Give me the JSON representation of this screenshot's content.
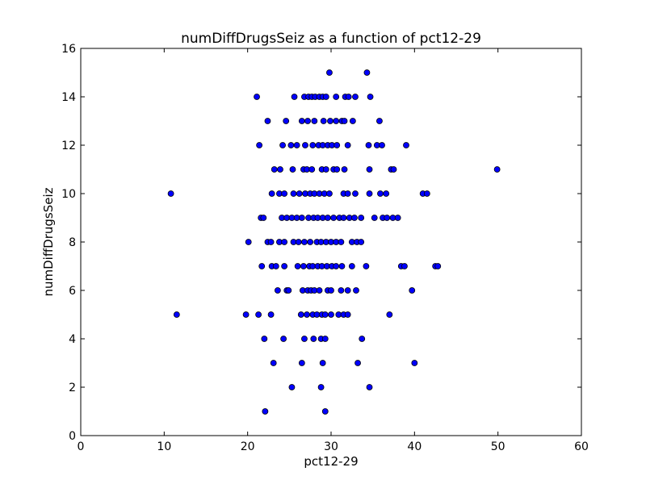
{
  "chart_data": {
    "type": "scatter",
    "title": "numDiffDrugsSeiz as a function of pct12-29",
    "xlabel": "pct12-29",
    "ylabel": "numDiffDrugsSeiz",
    "xlim": [
      0,
      60
    ],
    "ylim": [
      0,
      16
    ],
    "xticks": [
      "0",
      "10",
      "20",
      "30",
      "40",
      "50",
      "60"
    ],
    "yticks": [
      "0",
      "2",
      "4",
      "6",
      "8",
      "10",
      "12",
      "14",
      "16"
    ],
    "grid": false,
    "legend": "none",
    "marker_color": "#0000ff",
    "marker_edge_color": "#000000",
    "points": [
      {
        "x": 22.1,
        "y": 1
      },
      {
        "x": 29.3,
        "y": 1
      },
      {
        "x": 25.3,
        "y": 2
      },
      {
        "x": 28.8,
        "y": 2
      },
      {
        "x": 34.6,
        "y": 2
      },
      {
        "x": 23.1,
        "y": 3
      },
      {
        "x": 26.5,
        "y": 3
      },
      {
        "x": 29.0,
        "y": 3
      },
      {
        "x": 33.2,
        "y": 3
      },
      {
        "x": 40.0,
        "y": 3
      },
      {
        "x": 22.0,
        "y": 4
      },
      {
        "x": 24.3,
        "y": 4
      },
      {
        "x": 26.8,
        "y": 4
      },
      {
        "x": 27.9,
        "y": 4
      },
      {
        "x": 28.8,
        "y": 4
      },
      {
        "x": 29.3,
        "y": 4
      },
      {
        "x": 33.7,
        "y": 4
      },
      {
        "x": 11.5,
        "y": 5
      },
      {
        "x": 19.8,
        "y": 5
      },
      {
        "x": 21.3,
        "y": 5
      },
      {
        "x": 22.8,
        "y": 5
      },
      {
        "x": 26.4,
        "y": 5
      },
      {
        "x": 27.1,
        "y": 5
      },
      {
        "x": 27.8,
        "y": 5
      },
      {
        "x": 28.3,
        "y": 5
      },
      {
        "x": 28.9,
        "y": 5
      },
      {
        "x": 29.3,
        "y": 5
      },
      {
        "x": 30.0,
        "y": 5
      },
      {
        "x": 30.9,
        "y": 5
      },
      {
        "x": 31.5,
        "y": 5
      },
      {
        "x": 32.0,
        "y": 5
      },
      {
        "x": 37.0,
        "y": 5
      },
      {
        "x": 23.6,
        "y": 6
      },
      {
        "x": 24.7,
        "y": 6
      },
      {
        "x": 24.9,
        "y": 6
      },
      {
        "x": 26.6,
        "y": 6
      },
      {
        "x": 27.2,
        "y": 6
      },
      {
        "x": 27.6,
        "y": 6
      },
      {
        "x": 28.0,
        "y": 6
      },
      {
        "x": 28.6,
        "y": 6
      },
      {
        "x": 29.6,
        "y": 6
      },
      {
        "x": 30.0,
        "y": 6
      },
      {
        "x": 31.2,
        "y": 6
      },
      {
        "x": 32.0,
        "y": 6
      },
      {
        "x": 33.0,
        "y": 6
      },
      {
        "x": 39.7,
        "y": 6
      },
      {
        "x": 21.7,
        "y": 7
      },
      {
        "x": 22.9,
        "y": 7
      },
      {
        "x": 23.4,
        "y": 7
      },
      {
        "x": 24.4,
        "y": 7
      },
      {
        "x": 26.0,
        "y": 7
      },
      {
        "x": 26.7,
        "y": 7
      },
      {
        "x": 27.4,
        "y": 7
      },
      {
        "x": 27.8,
        "y": 7
      },
      {
        "x": 28.4,
        "y": 7
      },
      {
        "x": 28.9,
        "y": 7
      },
      {
        "x": 29.5,
        "y": 7
      },
      {
        "x": 30.1,
        "y": 7
      },
      {
        "x": 30.6,
        "y": 7
      },
      {
        "x": 31.3,
        "y": 7
      },
      {
        "x": 32.5,
        "y": 7
      },
      {
        "x": 34.2,
        "y": 7
      },
      {
        "x": 38.4,
        "y": 7
      },
      {
        "x": 38.8,
        "y": 7
      },
      {
        "x": 42.5,
        "y": 7
      },
      {
        "x": 42.8,
        "y": 7
      },
      {
        "x": 20.1,
        "y": 8
      },
      {
        "x": 22.4,
        "y": 8
      },
      {
        "x": 22.8,
        "y": 8
      },
      {
        "x": 23.8,
        "y": 8
      },
      {
        "x": 24.4,
        "y": 8
      },
      {
        "x": 25.5,
        "y": 8
      },
      {
        "x": 26.1,
        "y": 8
      },
      {
        "x": 26.8,
        "y": 8
      },
      {
        "x": 27.5,
        "y": 8
      },
      {
        "x": 28.3,
        "y": 8
      },
      {
        "x": 28.8,
        "y": 8
      },
      {
        "x": 29.4,
        "y": 8
      },
      {
        "x": 30.0,
        "y": 8
      },
      {
        "x": 30.6,
        "y": 8
      },
      {
        "x": 31.2,
        "y": 8
      },
      {
        "x": 32.5,
        "y": 8
      },
      {
        "x": 33.1,
        "y": 8
      },
      {
        "x": 33.6,
        "y": 8
      },
      {
        "x": 21.6,
        "y": 9
      },
      {
        "x": 21.9,
        "y": 9
      },
      {
        "x": 24.1,
        "y": 9
      },
      {
        "x": 24.7,
        "y": 9
      },
      {
        "x": 25.3,
        "y": 9
      },
      {
        "x": 25.9,
        "y": 9
      },
      {
        "x": 26.5,
        "y": 9
      },
      {
        "x": 27.3,
        "y": 9
      },
      {
        "x": 27.9,
        "y": 9
      },
      {
        "x": 28.4,
        "y": 9
      },
      {
        "x": 29.0,
        "y": 9
      },
      {
        "x": 29.6,
        "y": 9
      },
      {
        "x": 30.3,
        "y": 9
      },
      {
        "x": 31.0,
        "y": 9
      },
      {
        "x": 31.5,
        "y": 9
      },
      {
        "x": 32.2,
        "y": 9
      },
      {
        "x": 32.8,
        "y": 9
      },
      {
        "x": 33.6,
        "y": 9
      },
      {
        "x": 35.2,
        "y": 9
      },
      {
        "x": 36.2,
        "y": 9
      },
      {
        "x": 36.7,
        "y": 9
      },
      {
        "x": 37.4,
        "y": 9
      },
      {
        "x": 38.0,
        "y": 9
      },
      {
        "x": 10.8,
        "y": 10
      },
      {
        "x": 22.9,
        "y": 10
      },
      {
        "x": 23.8,
        "y": 10
      },
      {
        "x": 24.4,
        "y": 10
      },
      {
        "x": 25.5,
        "y": 10
      },
      {
        "x": 26.2,
        "y": 10
      },
      {
        "x": 26.9,
        "y": 10
      },
      {
        "x": 27.5,
        "y": 10
      },
      {
        "x": 28.0,
        "y": 10
      },
      {
        "x": 28.6,
        "y": 10
      },
      {
        "x": 29.2,
        "y": 10
      },
      {
        "x": 29.8,
        "y": 10
      },
      {
        "x": 31.5,
        "y": 10
      },
      {
        "x": 32.0,
        "y": 10
      },
      {
        "x": 32.9,
        "y": 10
      },
      {
        "x": 34.6,
        "y": 10
      },
      {
        "x": 35.9,
        "y": 10
      },
      {
        "x": 36.6,
        "y": 10
      },
      {
        "x": 41.0,
        "y": 10
      },
      {
        "x": 41.5,
        "y": 10
      },
      {
        "x": 23.2,
        "y": 11
      },
      {
        "x": 23.9,
        "y": 11
      },
      {
        "x": 25.4,
        "y": 11
      },
      {
        "x": 26.7,
        "y": 11
      },
      {
        "x": 27.1,
        "y": 11
      },
      {
        "x": 27.7,
        "y": 11
      },
      {
        "x": 28.9,
        "y": 11
      },
      {
        "x": 29.4,
        "y": 11
      },
      {
        "x": 30.3,
        "y": 11
      },
      {
        "x": 30.7,
        "y": 11
      },
      {
        "x": 31.6,
        "y": 11
      },
      {
        "x": 34.6,
        "y": 11
      },
      {
        "x": 37.2,
        "y": 11
      },
      {
        "x": 37.5,
        "y": 11
      },
      {
        "x": 49.9,
        "y": 11
      },
      {
        "x": 21.4,
        "y": 12
      },
      {
        "x": 24.2,
        "y": 12
      },
      {
        "x": 25.2,
        "y": 12
      },
      {
        "x": 25.9,
        "y": 12
      },
      {
        "x": 26.9,
        "y": 12
      },
      {
        "x": 27.8,
        "y": 12
      },
      {
        "x": 28.5,
        "y": 12
      },
      {
        "x": 29.0,
        "y": 12
      },
      {
        "x": 29.6,
        "y": 12
      },
      {
        "x": 30.1,
        "y": 12
      },
      {
        "x": 30.7,
        "y": 12
      },
      {
        "x": 32.0,
        "y": 12
      },
      {
        "x": 34.5,
        "y": 12
      },
      {
        "x": 35.5,
        "y": 12
      },
      {
        "x": 36.1,
        "y": 12
      },
      {
        "x": 39.0,
        "y": 12
      },
      {
        "x": 22.4,
        "y": 13
      },
      {
        "x": 24.6,
        "y": 13
      },
      {
        "x": 26.5,
        "y": 13
      },
      {
        "x": 27.2,
        "y": 13
      },
      {
        "x": 28.0,
        "y": 13
      },
      {
        "x": 29.1,
        "y": 13
      },
      {
        "x": 29.9,
        "y": 13
      },
      {
        "x": 30.6,
        "y": 13
      },
      {
        "x": 31.3,
        "y": 13
      },
      {
        "x": 31.6,
        "y": 13
      },
      {
        "x": 32.6,
        "y": 13
      },
      {
        "x": 35.8,
        "y": 13
      },
      {
        "x": 21.1,
        "y": 14
      },
      {
        "x": 25.6,
        "y": 14
      },
      {
        "x": 26.8,
        "y": 14
      },
      {
        "x": 27.3,
        "y": 14
      },
      {
        "x": 27.7,
        "y": 14
      },
      {
        "x": 28.1,
        "y": 14
      },
      {
        "x": 28.6,
        "y": 14
      },
      {
        "x": 29.0,
        "y": 14
      },
      {
        "x": 29.4,
        "y": 14
      },
      {
        "x": 30.6,
        "y": 14
      },
      {
        "x": 31.7,
        "y": 14
      },
      {
        "x": 32.1,
        "y": 14
      },
      {
        "x": 32.9,
        "y": 14
      },
      {
        "x": 34.7,
        "y": 14
      },
      {
        "x": 29.8,
        "y": 15
      },
      {
        "x": 34.3,
        "y": 15
      }
    ]
  }
}
